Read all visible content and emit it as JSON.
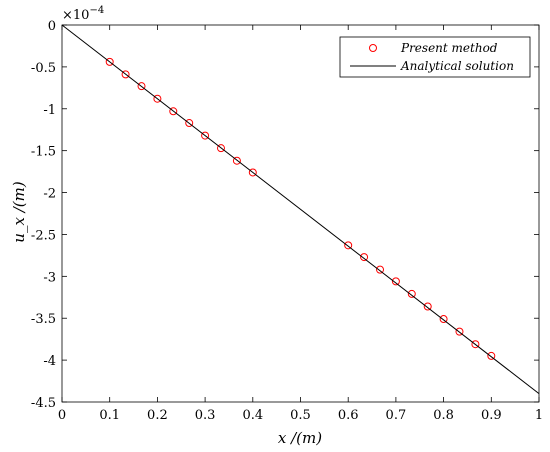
{
  "chart_data": {
    "type": "scatter",
    "title": "",
    "xlabel": "x /(m)",
    "ylabel": "u_x /(m)",
    "y_multiplier": "×10",
    "y_multiplier_exp": "−4",
    "xlim": [
      0,
      1
    ],
    "ylim": [
      -4.5,
      0
    ],
    "x_ticks": [
      "0",
      "0.1",
      "0.2",
      "0.3",
      "0.4",
      "0.5",
      "0.6",
      "0.7",
      "0.8",
      "0.9",
      "1"
    ],
    "y_ticks": [
      "0",
      "-0.5",
      "-1",
      "-1.5",
      "-2",
      "-2.5",
      "-3",
      "-3.5",
      "-4",
      "-4.5"
    ],
    "grid": false,
    "legend_position": "top-right",
    "series": [
      {
        "name": "Present method",
        "type": "scatter",
        "marker": "circle-open",
        "color": "#ff0000",
        "x": [
          0.1,
          0.1333,
          0.1667,
          0.2,
          0.2333,
          0.2667,
          0.3,
          0.3333,
          0.3667,
          0.4,
          0.6,
          0.6333,
          0.6667,
          0.7,
          0.7333,
          0.7667,
          0.8,
          0.8333,
          0.8667,
          0.9
        ],
        "y": [
          -0.44,
          -0.59,
          -0.73,
          -0.88,
          -1.03,
          -1.17,
          -1.32,
          -1.47,
          -1.62,
          -1.76,
          -2.63,
          -2.77,
          -2.92,
          -3.06,
          -3.21,
          -3.36,
          -3.51,
          -3.66,
          -3.81,
          -3.95
        ]
      },
      {
        "name": "Analytical solution",
        "type": "line",
        "color": "#000000",
        "x": [
          0,
          1
        ],
        "y": [
          0,
          -4.4
        ]
      }
    ]
  }
}
